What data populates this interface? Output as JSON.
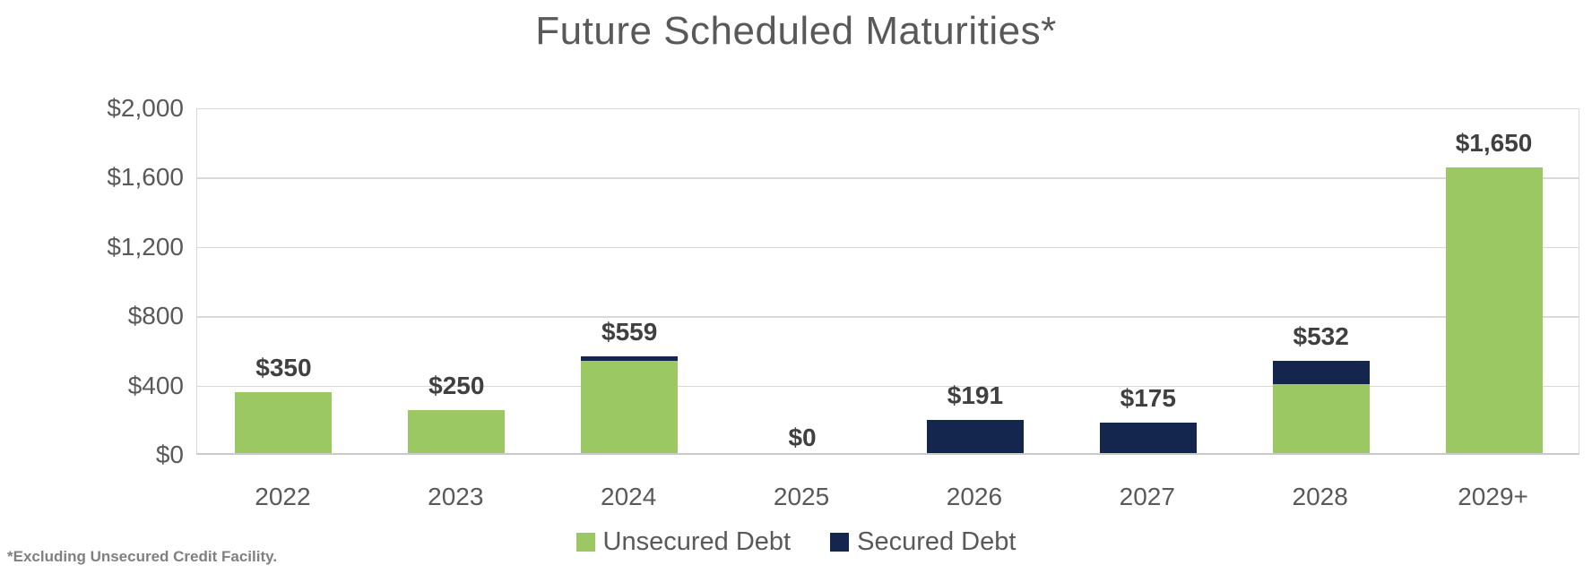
{
  "title": "Future Scheduled Maturities*",
  "footnote": "*Excluding Unsecured Credit Facility.",
  "colors": {
    "unsecured": "#9CC863",
    "secured": "#14264E",
    "title_text": "#595959",
    "axis_text": "#595959",
    "data_label_text": "#404040",
    "gridline": "#D9D9D9",
    "footnote_text": "#808080",
    "background": "#FFFFFF"
  },
  "legend": [
    {
      "label": "Unsecured Debt",
      "color": "#9CC863"
    },
    {
      "label": "Secured Debt",
      "color": "#14264E"
    }
  ],
  "chart_data": {
    "type": "bar",
    "stacked": true,
    "title": "Future Scheduled Maturities*",
    "xlabel": "",
    "ylabel": "",
    "categories": [
      "2022",
      "2023",
      "2024",
      "2025",
      "2026",
      "2027",
      "2028",
      "2029+"
    ],
    "series": [
      {
        "name": "Unsecured Debt",
        "color": "#9CC863",
        "values": [
          350,
          250,
          534,
          0,
          0,
          0,
          400,
          1650
        ]
      },
      {
        "name": "Secured Debt",
        "color": "#14264E",
        "values": [
          0,
          0,
          25,
          0,
          191,
          175,
          132,
          0
        ]
      }
    ],
    "totals": [
      350,
      250,
      559,
      0,
      191,
      175,
      532,
      1650
    ],
    "total_labels": [
      "$350",
      "$250",
      "$559",
      "$0",
      "$191",
      "$175",
      "$532",
      "$1,650"
    ],
    "y_ticks": [
      "$2,000",
      "$1,600",
      "$1,200",
      "$800",
      "$400",
      "$0"
    ],
    "ylim": [
      0,
      2000
    ],
    "grid": true,
    "legend_position": "bottom"
  }
}
